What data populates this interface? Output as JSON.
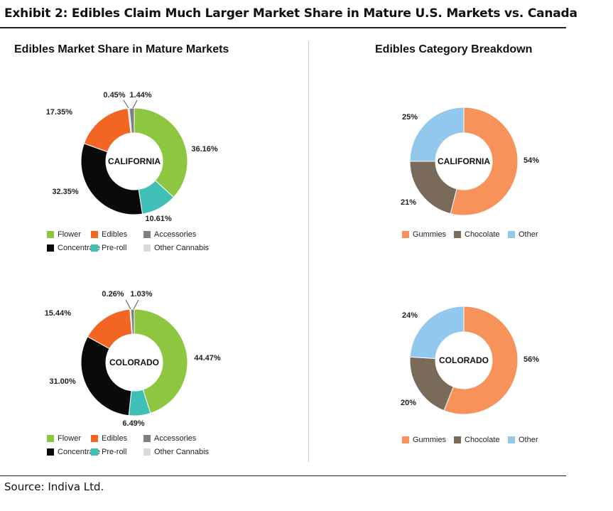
{
  "header": {
    "title": "Exhibit 2: Edibles Claim Much Larger Market Share in Mature U.S. Markets vs. Canada"
  },
  "left_panel": {
    "title": "Edibles Market Share in Mature Markets"
  },
  "right_panel": {
    "title": "Edibles Category Breakdown"
  },
  "footer": {
    "source": "Source: Indiva Ltd."
  },
  "colors": {
    "flower": "#8DC63F",
    "preroll": "#3FBFB6",
    "edibles": "#F26522",
    "concentrate": "#0A0A0A",
    "accessories": "#808080",
    "other_cannabis": "#D9D9D9",
    "gummies": "#F7925A",
    "chocolate": "#7A6A5A",
    "other": "#93C8EE"
  },
  "chart_data": [
    {
      "type": "pie",
      "center_label": "CALIFORNIA",
      "slices": [
        {
          "name": "Flower",
          "value": 36.16,
          "label": "36.16%"
        },
        {
          "name": "Pre-roll",
          "value": 10.61,
          "label": "10.61%"
        },
        {
          "name": "Concentrate",
          "value": 32.35,
          "label": "32.35%"
        },
        {
          "name": "Edibles",
          "value": 17.35,
          "label": "17.35%"
        },
        {
          "name": "Other Cannabis",
          "value": 0.45,
          "label": "0.45%"
        },
        {
          "name": "Accessories",
          "value": 1.44,
          "label": "1.44%"
        }
      ],
      "legend": [
        "Flower",
        "Concentrate",
        "Edibles",
        "Pre-roll",
        "Accessories",
        "Other Cannabis"
      ]
    },
    {
      "type": "pie",
      "center_label": "COLORADO",
      "slices": [
        {
          "name": "Flower",
          "value": 44.47,
          "label": "44.47%"
        },
        {
          "name": "Pre-roll",
          "value": 6.49,
          "label": "6.49%"
        },
        {
          "name": "Concentrate",
          "value": 31.0,
          "label": "31.00%"
        },
        {
          "name": "Edibles",
          "value": 15.44,
          "label": "15.44%"
        },
        {
          "name": "Other Cannabis",
          "value": 0.26,
          "label": "0.26%"
        },
        {
          "name": "Accessories",
          "value": 1.03,
          "label": "1.03%"
        }
      ],
      "legend": [
        "Flower",
        "Concentrate",
        "Edibles",
        "Pre-roll",
        "Accessories",
        "Other Cannabis"
      ]
    },
    {
      "type": "pie",
      "center_label": "CALIFORNIA",
      "slices": [
        {
          "name": "Gummies",
          "value": 54,
          "label": "54%"
        },
        {
          "name": "Chocolate",
          "value": 21,
          "label": "21%"
        },
        {
          "name": "Other",
          "value": 25,
          "label": "25%"
        }
      ],
      "legend": [
        "Gummies",
        "Chocolate",
        "Other"
      ]
    },
    {
      "type": "pie",
      "center_label": "COLORADO",
      "slices": [
        {
          "name": "Gummies",
          "value": 56,
          "label": "56%"
        },
        {
          "name": "Chocolate",
          "value": 20,
          "label": "20%"
        },
        {
          "name": "Other",
          "value": 24,
          "label": "24%"
        }
      ],
      "legend": [
        "Gummies",
        "Chocolate",
        "Other"
      ]
    }
  ]
}
